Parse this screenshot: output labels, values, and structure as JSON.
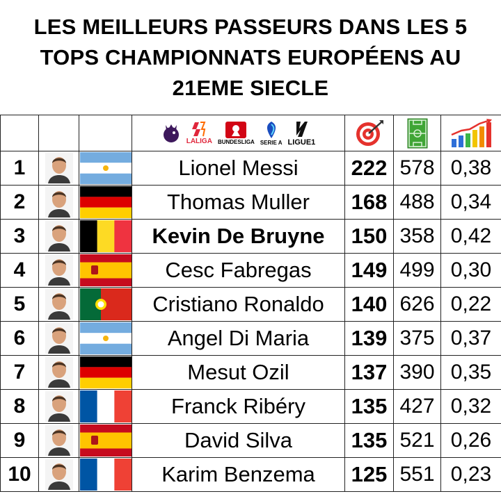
{
  "title": {
    "line1": "LES MEILLEURS PASSEURS DANS LES 5",
    "line2": "TOPS CHAMPIONNATS EUROPÉENS AU",
    "line3": "21EME SIECLE"
  },
  "header": {
    "leagues": [
      "LALIGA",
      "BUNDESLIGA",
      "SERIE A",
      "LIGUE1"
    ],
    "icons": {
      "assists": "target-icon",
      "matches": "pitch-icon",
      "ratio": "bar-chart-icon"
    }
  },
  "players": [
    {
      "rank": "1",
      "name": "Lionel Messi",
      "country": "argentina",
      "assists": "222",
      "matches": "578",
      "ratio": "0,38",
      "bold": false
    },
    {
      "rank": "2",
      "name": "Thomas Muller",
      "country": "germany",
      "assists": "168",
      "matches": "488",
      "ratio": "0,34",
      "bold": false
    },
    {
      "rank": "3",
      "name": "Kevin De Bruyne",
      "country": "belgium",
      "assists": "150",
      "matches": "358",
      "ratio": "0,42",
      "bold": true
    },
    {
      "rank": "4",
      "name": "Cesc Fabregas",
      "country": "spain",
      "assists": "149",
      "matches": "499",
      "ratio": "0,30",
      "bold": false
    },
    {
      "rank": "5",
      "name": "Cristiano Ronaldo",
      "country": "portugal",
      "assists": "140",
      "matches": "626",
      "ratio": "0,22",
      "bold": false
    },
    {
      "rank": "6",
      "name": "Angel Di Maria",
      "country": "argentina",
      "assists": "139",
      "matches": "375",
      "ratio": "0,37",
      "bold": false
    },
    {
      "rank": "7",
      "name": "Mesut Ozil",
      "country": "germany",
      "assists": "137",
      "matches": "390",
      "ratio": "0,35",
      "bold": false
    },
    {
      "rank": "8",
      "name": "Franck Ribéry",
      "country": "france",
      "assists": "135",
      "matches": "427",
      "ratio": "0,32",
      "bold": false
    },
    {
      "rank": "9",
      "name": "David Silva",
      "country": "spain",
      "assists": "135",
      "matches": "521",
      "ratio": "0,26",
      "bold": false
    },
    {
      "rank": "10",
      "name": "Karim Benzema",
      "country": "france",
      "assists": "125",
      "matches": "551",
      "ratio": "0,23",
      "bold": false
    }
  ],
  "colors": {
    "argentina_blue": "#74acdf",
    "germany": [
      "#000000",
      "#dd0000",
      "#ffce00"
    ],
    "belgium": [
      "#000000",
      "#fdda24",
      "#ef3340"
    ],
    "spain": [
      "#c60b1e",
      "#ffc400"
    ],
    "portugal": [
      "#046a38",
      "#da291c"
    ],
    "france": [
      "#0055a4",
      "#ffffff",
      "#ef4135"
    ]
  }
}
